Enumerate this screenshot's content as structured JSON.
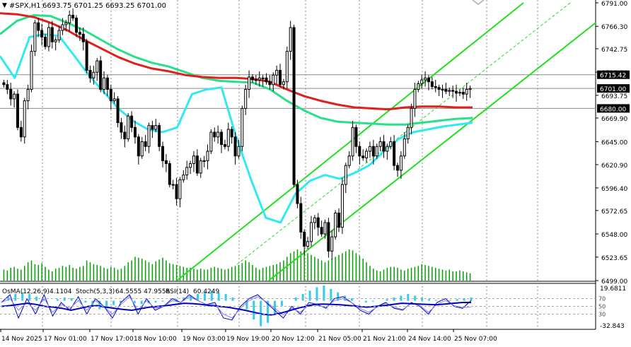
{
  "main_header": {
    "symbol_label": "#SPX,H1",
    "ohlc_text": "6693.75 6701.25 6693.25 6701.00"
  },
  "indicator_header": {
    "osma_label": "OsMA(12,26,9)",
    "osma_value": "4.1104",
    "stoch_label": "Stoch(5,3,3)",
    "stoch_values": "64.5555 47.9556",
    "rsi_label": "RSI(14)",
    "rsi_value": "60.4249"
  },
  "price_axis": {
    "labels": [
      "6791.00",
      "6766.30",
      "6742.75",
      "6718.10",
      "6693.75",
      "6669.90",
      "6645.00",
      "6620.90",
      "6596.40",
      "6572.65",
      "6548.00",
      "6523.65",
      "6499.00"
    ]
  },
  "marked_prices": [
    {
      "value": "6715.42",
      "kind": "hline"
    },
    {
      "value": "6701.00",
      "kind": "bid"
    },
    {
      "value": "6680.00",
      "kind": "hline"
    }
  ],
  "indicator_axis": {
    "top": "19.6811",
    "bottom": "-32.843",
    "levels": [
      "70",
      "50",
      "30"
    ]
  },
  "time_axis": {
    "labels": [
      "14 Nov 2025",
      "17 Nov 01:00",
      "17 Nov 17:00",
      "18 Nov 10:00",
      "19 Nov 03:00",
      "19 Nov 19:00",
      "20 Nov 12:00",
      "21 Nov 05:00",
      "21 Nov 21:00",
      "24 Nov 14:00",
      "25 Nov 07:00"
    ]
  },
  "colors": {
    "background": "#ffffff",
    "candles": "#000000",
    "volume": "#00a000",
    "ma_fast": "#33e8f2",
    "ma_mid": "#28e08a",
    "ma_slow": "#e0201c",
    "channel": "#20e020",
    "channel_mid": "#20e020",
    "osma_hist": "#33ccee",
    "osc_main": "#0000c0",
    "osc_signal": "#8080ff",
    "grid": "#888888"
  },
  "chart_data": [
    {
      "type": "candlestick",
      "symbol": "#SPX",
      "timeframe": "H1",
      "ylim": [
        6497,
        6795
      ],
      "series": [
        {
          "name": "close",
          "values": [
            6705,
            6700,
            6690,
            6695,
            6660,
            6650,
            6688,
            6700,
            6740,
            6770,
            6762,
            6755,
            6745,
            6765,
            6750,
            6752,
            6762,
            6768,
            6770,
            6778,
            6775,
            6760,
            6758,
            6750,
            6720,
            6712,
            6718,
            6730,
            6700,
            6712,
            6700,
            6688,
            6690,
            6665,
            6655,
            6648,
            6672,
            6660,
            6650,
            6630,
            6645,
            6640,
            6662,
            6658,
            6662,
            6640,
            6625,
            6622,
            6600,
            6600,
            6585,
            6605,
            6610,
            6618,
            6622,
            6630,
            6612,
            6625,
            6625,
            6635,
            6655,
            6650,
            6655,
            6642,
            6640,
            6658,
            6650,
            6630,
            6640,
            6680,
            6700,
            6713,
            6710,
            6710,
            6712,
            6712,
            6708,
            6705,
            6715,
            6720,
            6705,
            6708,
            6740,
            6765,
            6600,
            6580,
            6550,
            6535,
            6540,
            6560,
            6565,
            6555,
            6548,
            6560,
            6530,
            6545,
            6570,
            6555,
            6600,
            6620,
            6630,
            6660,
            6640,
            6630,
            6628,
            6635,
            6640,
            6630,
            6640,
            6645,
            6635,
            6640,
            6645,
            6620,
            6615,
            6630,
            6648,
            6660,
            6680,
            6700,
            6706,
            6710,
            6712,
            6708,
            6703,
            6702,
            6700,
            6700,
            6698,
            6699,
            6698,
            6696,
            6697,
            6695,
            6700,
            6701
          ]
        },
        {
          "name": "MA fast",
          "values": [
            6735,
            6712,
            6755,
            6758,
            6756,
            6736,
            6715,
            6698,
            6680,
            6667,
            6658,
            6655,
            6660,
            6695,
            6700,
            6702,
            6650,
            6605,
            6565,
            6560,
            6590,
            6604,
            6610,
            6606,
            6612,
            6620,
            6635,
            6648,
            6655,
            6658,
            6661,
            6663,
            6665
          ]
        },
        {
          "name": "MA mid",
          "values": [
            6758,
            6772,
            6778,
            6777,
            6770,
            6762,
            6752,
            6742,
            6734,
            6728,
            6724,
            6718,
            6712,
            6709,
            6708,
            6707,
            6700,
            6688,
            6678,
            6670,
            6666,
            6665,
            6664,
            6663,
            6663,
            6665,
            6667,
            6669,
            6670
          ]
        },
        {
          "name": "MA slow",
          "values": [
            6780,
            6779,
            6776,
            6770,
            6762,
            6752,
            6743,
            6734,
            6727,
            6722,
            6719,
            6715,
            6713,
            6712,
            6712,
            6711,
            6708,
            6700,
            6693,
            6688,
            6684,
            6681,
            6680,
            6679,
            6681,
            6682,
            6682,
            6681,
            6681
          ]
        }
      ]
    },
    {
      "type": "bar",
      "name": "volume",
      "values": [
        12,
        11,
        14,
        15,
        13,
        12,
        16,
        20,
        22,
        18,
        17,
        19,
        15,
        12,
        10,
        13,
        14,
        16,
        15,
        17,
        14,
        13,
        15,
        16,
        22,
        20,
        18,
        17,
        16,
        14,
        13,
        15,
        14,
        12,
        13,
        16,
        20,
        22,
        26,
        25,
        24,
        22,
        20,
        18,
        21,
        23,
        25,
        22,
        19,
        18,
        17,
        16,
        15,
        14,
        14,
        13,
        12,
        13,
        12,
        12,
        14,
        15,
        14,
        13,
        12,
        13,
        15,
        16,
        17,
        19,
        22,
        20,
        17,
        14,
        12,
        14,
        15,
        16,
        17,
        18,
        20,
        22,
        26,
        30,
        32,
        34,
        32,
        33,
        30,
        28,
        26,
        24,
        22,
        20,
        22,
        24,
        26,
        28,
        30,
        32,
        34,
        33,
        30,
        27,
        24,
        20,
        16,
        13,
        11,
        10,
        12,
        14,
        15,
        15,
        14,
        12,
        11,
        13,
        14,
        15,
        16,
        18,
        17,
        16,
        15,
        14,
        13,
        12,
        11,
        12,
        10,
        10,
        11,
        10,
        9,
        8
      ]
    },
    {
      "type": "line",
      "name": "oscillator panel",
      "ylim": [
        -32.843,
        19.6811
      ],
      "series": [
        {
          "name": "OsMA",
          "values": [
            0,
            5,
            8,
            10,
            8,
            5,
            2,
            0,
            2,
            4,
            3,
            1,
            -2,
            -6,
            -10,
            -8,
            -5,
            -2,
            0,
            -3,
            -4,
            -3,
            -2,
            -1,
            0,
            2,
            4,
            6,
            8,
            10,
            12,
            10,
            8,
            4,
            0,
            -10,
            -22,
            -30,
            -26,
            -15,
            -6,
            0,
            4,
            8,
            12,
            16,
            18,
            14,
            10,
            6,
            3,
            0,
            -2,
            -1,
            0,
            2,
            4,
            6,
            8,
            6,
            4,
            2,
            1,
            0,
            1,
            2,
            3,
            4
          ]
        },
        {
          "name": "Stoch main",
          "values": [
            60,
            80,
            20,
            70,
            30,
            80,
            25,
            60,
            40,
            75,
            30,
            70,
            50,
            20,
            60,
            80,
            30,
            70,
            40,
            50,
            70,
            60,
            80,
            65,
            55,
            60,
            20,
            15,
            50,
            70,
            80,
            60,
            40,
            20,
            50,
            30,
            60,
            55,
            45,
            70,
            75,
            60,
            40,
            30,
            50,
            60,
            45,
            40,
            60,
            50,
            30,
            60,
            70,
            50,
            45,
            65
          ]
        },
        {
          "name": "Stoch signal",
          "values": [
            60,
            70,
            40,
            60,
            40,
            70,
            35,
            55,
            45,
            65,
            40,
            65,
            50,
            30,
            55,
            75,
            40,
            65,
            45,
            50,
            65,
            60,
            75,
            65,
            55,
            55,
            30,
            20,
            45,
            65,
            75,
            62,
            45,
            28,
            45,
            35,
            55,
            52,
            48,
            65,
            70,
            60,
            45,
            35,
            48,
            58,
            48,
            42,
            58,
            52,
            35,
            55,
            65,
            52,
            47,
            48
          ]
        },
        {
          "name": "RSI",
          "values": [
            50,
            52,
            55,
            58,
            55,
            50,
            48,
            45,
            40,
            45,
            50,
            52,
            48,
            45,
            42,
            40,
            44,
            48,
            50,
            52,
            55,
            58,
            57,
            55,
            52,
            50,
            48,
            44,
            40,
            35,
            30,
            28,
            32,
            38,
            45,
            50,
            55,
            56,
            55,
            54,
            52,
            50,
            48,
            50,
            52,
            55,
            58,
            57,
            56,
            55,
            54,
            56,
            58,
            60,
            60
          ]
        }
      ],
      "levels": [
        70,
        50,
        30
      ]
    }
  ]
}
